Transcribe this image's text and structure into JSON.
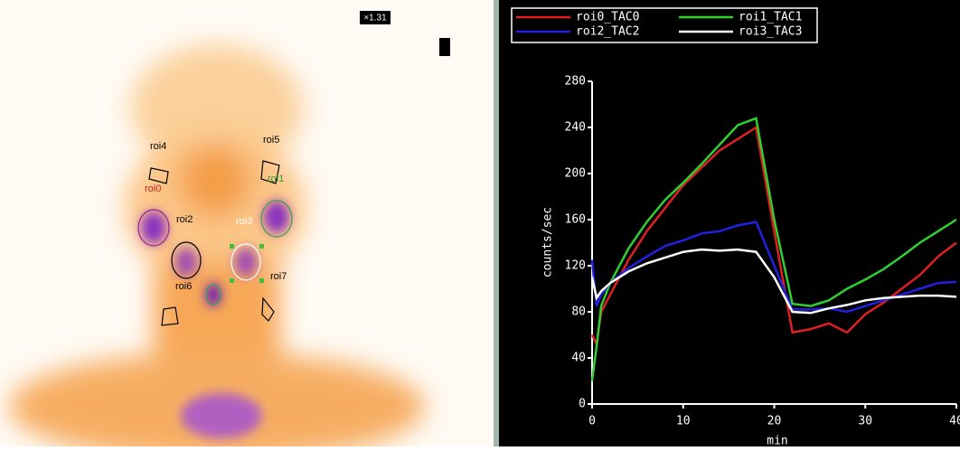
{
  "image": {
    "zoom": "×1.31",
    "roi_labels": [
      "roi4",
      "roi5",
      "roi0",
      "roi1",
      "roi2",
      "roi3",
      "roi6",
      "roi7"
    ]
  },
  "chart_data": {
    "type": "line",
    "x_label": "min",
    "y_label": "counts/sec",
    "x": [
      0,
      0.5,
      1,
      2,
      4,
      6,
      8,
      10,
      12,
      14,
      16,
      18,
      20,
      22,
      24,
      26,
      28,
      30,
      32,
      34,
      36,
      38,
      40
    ],
    "xlim": [
      0,
      40
    ],
    "xticks": [
      0,
      10,
      20,
      30,
      40
    ],
    "ylim": [
      0,
      280
    ],
    "yticks": [
      0,
      40,
      80,
      120,
      160,
      200,
      240,
      280
    ],
    "series": [
      {
        "name": "roi0_TAC0",
        "color": "#e02020",
        "values": [
          60,
          52,
          80,
          95,
          125,
          150,
          170,
          190,
          205,
          220,
          230,
          240,
          150,
          62,
          65,
          70,
          62,
          78,
          88,
          100,
          112,
          128,
          140
        ]
      },
      {
        "name": "roi1_TAC1",
        "color": "#30d030",
        "values": [
          20,
          50,
          85,
          105,
          135,
          158,
          177,
          192,
          208,
          225,
          242,
          248,
          160,
          87,
          85,
          90,
          100,
          108,
          117,
          128,
          140,
          150,
          160
        ]
      },
      {
        "name": "roi2_TAC2",
        "color": "#2020e0",
        "values": [
          125,
          85,
          95,
          105,
          118,
          128,
          137,
          142,
          148,
          150,
          155,
          158,
          120,
          82,
          82,
          83,
          80,
          85,
          90,
          95,
          100,
          105,
          106
        ]
      },
      {
        "name": "roi3_TAC3",
        "color": "#ffffff",
        "values": [
          110,
          92,
          98,
          105,
          115,
          122,
          127,
          132,
          134,
          133,
          134,
          132,
          110,
          80,
          79,
          83,
          86,
          90,
          92,
          93,
          94,
          94,
          93
        ]
      }
    ]
  }
}
